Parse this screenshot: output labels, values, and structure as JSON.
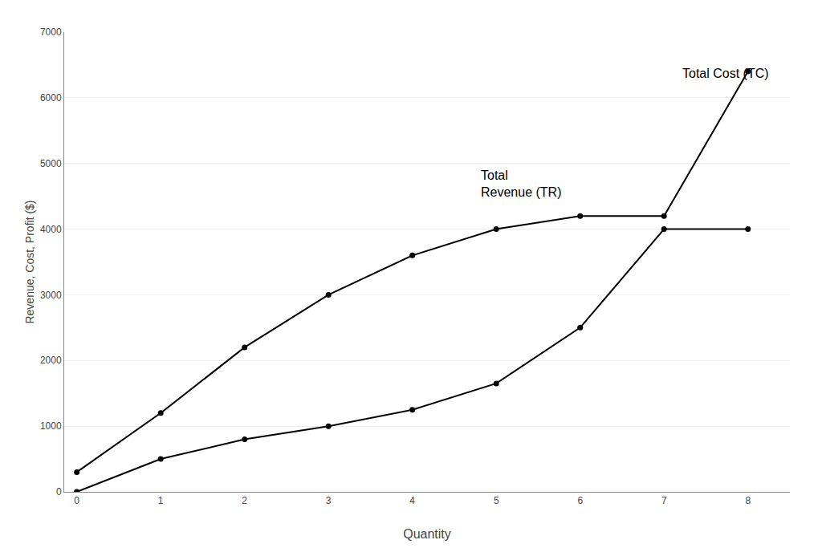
{
  "chart_data": {
    "type": "line",
    "x": [
      0,
      1,
      2,
      3,
      4,
      5,
      6,
      7,
      8
    ],
    "series": [
      {
        "color": "#000000",
        "marker": "circle",
        "line_style": "solid",
        "values": [
          0,
          500,
          800,
          1000,
          1250,
          1650,
          2500,
          4000,
          4000
        ]
      },
      {
        "color": "#000000",
        "marker": "circle",
        "line_style": "solid",
        "values": [
          300,
          1200,
          2200,
          3000,
          3600,
          4000,
          4200,
          4200,
          6400
        ]
      }
    ],
    "annotations": [
      {
        "text": "Total\nRevenue (TR)",
        "x": 4.8,
        "y": 4950,
        "color": "#000000"
      },
      {
        "text": "Total Cost (TC)",
        "x": 7.2,
        "y": 6500,
        "color": "#000000"
      }
    ],
    "xlabel": "Quantity",
    "ylabel": "Revenue, Cost, Profit ($)",
    "xlim": [
      -0.15,
      8.5
    ],
    "ylim": [
      0,
      7000
    ],
    "xticks": [
      0,
      1,
      2,
      3,
      4,
      5,
      6,
      7,
      8
    ],
    "yticks": [
      0,
      1000,
      2000,
      3000,
      4000,
      5000,
      6000,
      7000
    ],
    "grid": "y"
  }
}
